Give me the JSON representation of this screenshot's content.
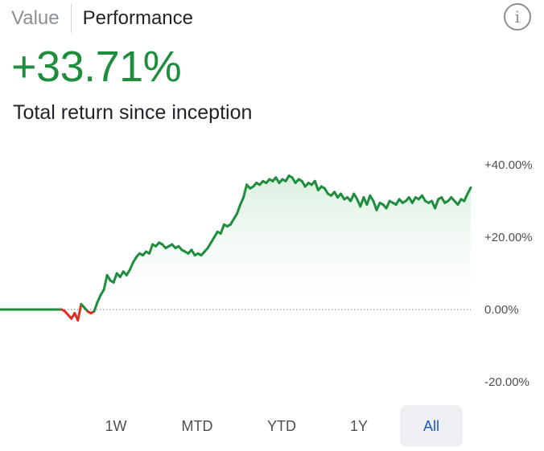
{
  "tabs": {
    "value_label": "Value",
    "performance_label": "Performance",
    "active": "Performance"
  },
  "info_icon": "info-icon",
  "summary": {
    "total_return": "+33.71%",
    "subtitle": "Total return since inception"
  },
  "colors": {
    "positive": "#1e8e3e",
    "negative": "#d93025",
    "fill": "#e6f4ea",
    "accent": "#1a56c4"
  },
  "chart_data": {
    "type": "line",
    "yticks": [
      "+40.00%",
      "+20.00%",
      "0.00%",
      "-20.00%"
    ],
    "ytick_values": [
      40,
      20,
      0,
      -20
    ],
    "ylim": [
      -20,
      40
    ],
    "baseline": 0,
    "series": [
      {
        "values": [
          0,
          0,
          0,
          0,
          0,
          0,
          0,
          0,
          0,
          0,
          0,
          0,
          0,
          0,
          0,
          0,
          0,
          0,
          0,
          0,
          -0.5,
          -1.5,
          -2.5,
          -1.0,
          -3.0,
          1.5,
          0.5,
          -0.5,
          -1.0,
          -0.5,
          2.0,
          4.0,
          5.5,
          9.5,
          8.0,
          7.5,
          10.0,
          9.0,
          10.5,
          9.5,
          11.0,
          13.0,
          14.5,
          15.5,
          15.0,
          16.0,
          15.5,
          18.0,
          17.5,
          18.5,
          18.0,
          17.0,
          17.5,
          18.0,
          17.0,
          17.5,
          16.5,
          16.0,
          15.5,
          16.5,
          15.0,
          15.5,
          15.0,
          16.0,
          17.0,
          18.5,
          20.0,
          21.5,
          21.0,
          23.5,
          23.0,
          23.5,
          25.0,
          26.5,
          29.0,
          31.0,
          34.5,
          33.5,
          34.0,
          35.0,
          34.5,
          35.5,
          35.0,
          36.0,
          35.5,
          36.5,
          35.0,
          36.0,
          35.5,
          37.0,
          36.5,
          35.0,
          36.0,
          35.5,
          34.0,
          35.0,
          34.5,
          35.5,
          33.0,
          34.0,
          33.5,
          32.0,
          31.5,
          32.5,
          31.0,
          32.0,
          30.5,
          31.0,
          30.0,
          32.0,
          30.5,
          28.5,
          31.0,
          29.0,
          31.5,
          30.0,
          27.5,
          29.5,
          29.0,
          28.0,
          30.0,
          29.5,
          29.0,
          30.5,
          29.5,
          30.0,
          31.0,
          29.5,
          31.0,
          30.5,
          31.5,
          30.0,
          29.5,
          30.0,
          28.0,
          30.5,
          31.0,
          29.5,
          30.0,
          31.0,
          30.0,
          29.0,
          30.5,
          30.0,
          32.0,
          33.71
        ]
      }
    ]
  },
  "ranges": {
    "options": [
      "1W",
      "MTD",
      "YTD",
      "1Y",
      "All"
    ],
    "selected": "All"
  }
}
